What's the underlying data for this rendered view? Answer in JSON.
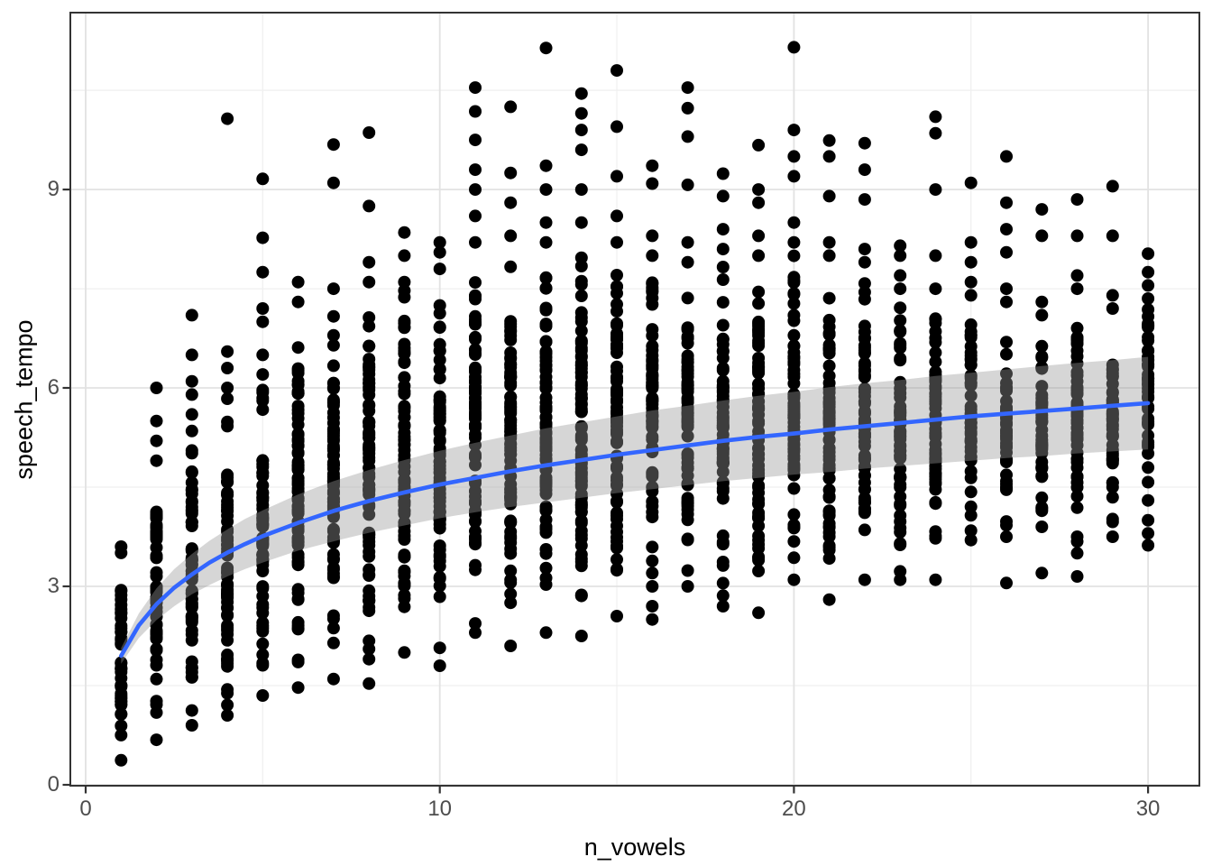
{
  "chart_data": {
    "type": "scatter",
    "title": "",
    "xlabel": "n_vowels",
    "ylabel": "speech_tempo",
    "x_ticks": [
      "0",
      "10",
      "20",
      "30"
    ],
    "x_tick_values": [
      0,
      10,
      20,
      30
    ],
    "x_minor_gridlines": [
      5,
      15,
      25
    ],
    "y_ticks": [
      "0",
      "3",
      "6",
      "9"
    ],
    "y_tick_values": [
      0,
      3,
      6,
      9
    ],
    "y_minor_gridlines": [
      1.5,
      4.5,
      7.5,
      10.5
    ],
    "xlim": [
      -0.433,
      31.45
    ],
    "ylim": [
      -0.014,
      11.674
    ],
    "grid": true,
    "legend": "none",
    "point_color": "#000000",
    "columns": [
      {
        "x": 1,
        "ymin": 0.37,
        "ymax": 3.6,
        "outliers": []
      },
      {
        "x": 2,
        "ymin": 0.68,
        "ymax": 4.9,
        "outliers": [
          5.2,
          5.5,
          6.0
        ]
      },
      {
        "x": 3,
        "ymin": 0.9,
        "ymax": 5.6,
        "outliers": [
          5.9,
          6.1,
          6.5,
          7.1
        ]
      },
      {
        "x": 4,
        "ymin": 1.05,
        "ymax": 6.0,
        "outliers": [
          6.3,
          6.55,
          10.07
        ]
      },
      {
        "x": 5,
        "ymin": 1.35,
        "ymax": 6.5,
        "outliers": [
          7.0,
          7.2,
          7.75,
          8.27,
          9.16
        ]
      },
      {
        "x": 6,
        "ymin": 1.47,
        "ymax": 7.3,
        "outliers": [
          7.6
        ]
      },
      {
        "x": 7,
        "ymin": 1.6,
        "ymax": 7.5,
        "outliers": [
          9.1,
          9.68
        ]
      },
      {
        "x": 8,
        "ymin": 1.9,
        "ymax": 7.6,
        "outliers": [
          7.9,
          8.75,
          9.86,
          1.53
        ]
      },
      {
        "x": 9,
        "ymin": 2.0,
        "ymax": 7.6,
        "outliers": [
          8.0,
          8.35
        ]
      },
      {
        "x": 10,
        "ymin": 2.07,
        "ymax": 7.8,
        "outliers": [
          8.05,
          8.2,
          1.8
        ]
      },
      {
        "x": 11,
        "ymin": 2.3,
        "ymax": 8.2,
        "outliers": [
          8.6,
          9.0,
          9.3,
          9.75,
          10.18,
          10.54
        ]
      },
      {
        "x": 12,
        "ymin": 2.1,
        "ymax": 8.3,
        "outliers": [
          8.8,
          9.25,
          10.25
        ]
      },
      {
        "x": 13,
        "ymin": 2.3,
        "ymax": 8.2,
        "outliers": [
          8.5,
          9.0,
          9.36,
          11.14
        ]
      },
      {
        "x": 14,
        "ymin": 2.25,
        "ymax": 8.5,
        "outliers": [
          9.0,
          9.6,
          9.9,
          10.15,
          10.45
        ]
      },
      {
        "x": 15,
        "ymin": 2.55,
        "ymax": 8.2,
        "outliers": [
          8.6,
          9.2,
          9.95,
          10.8
        ]
      },
      {
        "x": 16,
        "ymin": 3.2,
        "ymax": 8.0,
        "outliers": [
          8.3,
          9.09,
          9.36,
          3.0,
          2.7,
          2.5
        ]
      },
      {
        "x": 17,
        "ymin": 3.0,
        "ymax": 7.9,
        "outliers": [
          8.2,
          9.07,
          9.8,
          10.23,
          10.54
        ]
      },
      {
        "x": 18,
        "ymin": 2.86,
        "ymax": 8.1,
        "outliers": [
          8.4,
          8.9,
          9.24,
          2.7
        ]
      },
      {
        "x": 19,
        "ymin": 2.6,
        "ymax": 8.0,
        "outliers": [
          8.3,
          8.8,
          9.0,
          9.67
        ]
      },
      {
        "x": 20,
        "ymin": 3.1,
        "ymax": 8.2,
        "outliers": [
          8.5,
          9.2,
          9.5,
          9.9,
          11.15
        ]
      },
      {
        "x": 21,
        "ymin": 2.8,
        "ymax": 8.0,
        "outliers": [
          8.2,
          8.9,
          9.5,
          9.74
        ]
      },
      {
        "x": 22,
        "ymin": 3.1,
        "ymax": 7.9,
        "outliers": [
          8.1,
          8.85,
          9.3,
          9.7
        ]
      },
      {
        "x": 23,
        "ymin": 3.1,
        "ymax": 7.5,
        "outliers": [
          7.7,
          8.0,
          8.15
        ]
      },
      {
        "x": 24,
        "ymin": 3.1,
        "ymax": 7.5,
        "outliers": [
          8.0,
          9.0,
          9.85,
          10.1
        ]
      },
      {
        "x": 25,
        "ymin": 3.7,
        "ymax": 7.4,
        "outliers": [
          7.6,
          7.9,
          8.2,
          9.1
        ]
      },
      {
        "x": 26,
        "ymin": 3.75,
        "ymax": 7.3,
        "outliers": [
          7.5,
          8.05,
          8.4,
          8.8,
          9.5,
          3.05
        ]
      },
      {
        "x": 27,
        "ymin": 3.9,
        "ymax": 7.1,
        "outliers": [
          7.3,
          8.3,
          8.7,
          3.2
        ]
      },
      {
        "x": 28,
        "ymin": 3.5,
        "ymax": 7.5,
        "outliers": [
          7.7,
          8.3,
          8.85,
          3.15
        ]
      },
      {
        "x": 29,
        "ymin": 3.75,
        "ymax": 7.2,
        "outliers": [
          7.4,
          8.3,
          9.05
        ]
      },
      {
        "x": 30,
        "ymin": 4.0,
        "ymax": 7.35,
        "outliers": [
          7.55,
          7.75,
          8.03,
          3.62,
          3.8
        ]
      }
    ],
    "smooth": {
      "x": [
        1,
        1.5,
        2,
        2.5,
        3,
        3.5,
        4,
        4.5,
        5,
        6,
        7,
        8,
        9,
        10,
        11,
        12,
        13,
        14,
        15,
        16,
        17,
        18,
        19,
        20,
        21,
        22,
        23,
        24,
        25,
        26,
        27,
        28,
        29,
        30
      ],
      "y": [
        1.95,
        2.41,
        2.73,
        2.98,
        3.18,
        3.36,
        3.51,
        3.64,
        3.76,
        3.96,
        4.14,
        4.29,
        4.42,
        4.54,
        4.64,
        4.74,
        4.83,
        4.91,
        4.99,
        5.06,
        5.13,
        5.2,
        5.26,
        5.31,
        5.37,
        5.42,
        5.47,
        5.52,
        5.57,
        5.61,
        5.65,
        5.69,
        5.73,
        5.77
      ],
      "ribbon_lo": [
        1.83,
        2.22,
        2.49,
        2.7,
        2.88,
        3.02,
        3.15,
        3.26,
        3.36,
        3.54,
        3.68,
        3.81,
        3.92,
        4.03,
        4.12,
        4.2,
        4.27,
        4.34,
        4.41,
        4.47,
        4.53,
        4.59,
        4.64,
        4.69,
        4.73,
        4.78,
        4.82,
        4.86,
        4.9,
        4.94,
        4.97,
        5.01,
        5.04,
        5.07
      ],
      "ribbon_hi": [
        2.07,
        2.59,
        2.97,
        3.26,
        3.49,
        3.69,
        3.86,
        4.02,
        4.15,
        4.39,
        4.59,
        4.76,
        4.91,
        5.05,
        5.17,
        5.28,
        5.39,
        5.48,
        5.57,
        5.66,
        5.73,
        5.81,
        5.88,
        5.94,
        6.01,
        6.07,
        6.12,
        6.18,
        6.23,
        6.28,
        6.33,
        6.38,
        6.42,
        6.47
      ]
    },
    "colors": {
      "point": "#000000",
      "smooth_line": "#3366FF",
      "ribbon": "#999999",
      "ribbon_opacity": 0.4,
      "panel_border": "#333333",
      "grid_major": "#e2e2e2",
      "grid_minor": "#efefef",
      "tick_mark": "#333333",
      "tick_label": "#4d4d4d",
      "axis_title": "#000000",
      "background": "#ffffff"
    }
  }
}
